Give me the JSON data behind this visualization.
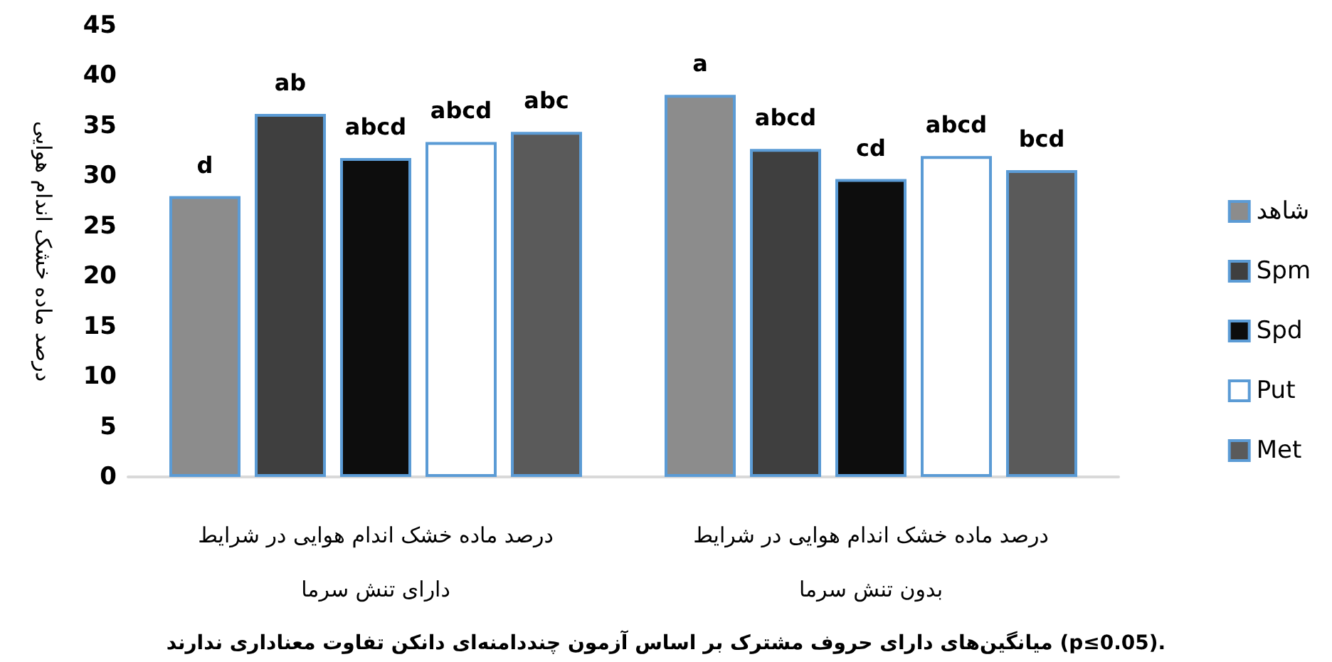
{
  "chart_data": {
    "type": "bar",
    "ylabel": "درصد ماده خشک اندام هوایی",
    "categories": [
      "درصد ماده خشک اندام هوایی در شرایط\nدارای تنش سرما",
      "درصد ماده خشک اندام هوایی در شرایط\nبدون تنش سرما"
    ],
    "series": [
      {
        "name": "شاهد",
        "color": "#8c8c8c",
        "values": [
          28,
          38.1
        ],
        "value_labels": [
          "d",
          "a"
        ]
      },
      {
        "name": "Spm",
        "color": "#3f3f3f",
        "values": [
          36.2,
          32.7
        ],
        "value_labels": [
          "ab",
          "abcd"
        ]
      },
      {
        "name": "Spd",
        "color": "#0d0d0d",
        "values": [
          31.8,
          29.7
        ],
        "value_labels": [
          "abcd",
          "cd"
        ]
      },
      {
        "name": "Put",
        "color": "#ffffff",
        "values": [
          33.4,
          32
        ],
        "value_labels": [
          "abcd",
          "abcd"
        ]
      },
      {
        "name": "Met",
        "color": "#5a5a5a",
        "values": [
          34.4,
          30.6
        ],
        "value_labels": [
          "abc",
          "bcd"
        ]
      }
    ],
    "ylim": [
      0,
      45
    ],
    "yticks": [
      0,
      5,
      10,
      15,
      20,
      25,
      30,
      35,
      40,
      45
    ],
    "grid": false,
    "legend": "right",
    "annotations": [
      "میانگین‌های دارای حروف مشترک بر اساس آزمون چنددامنه‌ای دانکن تفاوت معناداری ندارند (p≤0.05)."
    ]
  }
}
